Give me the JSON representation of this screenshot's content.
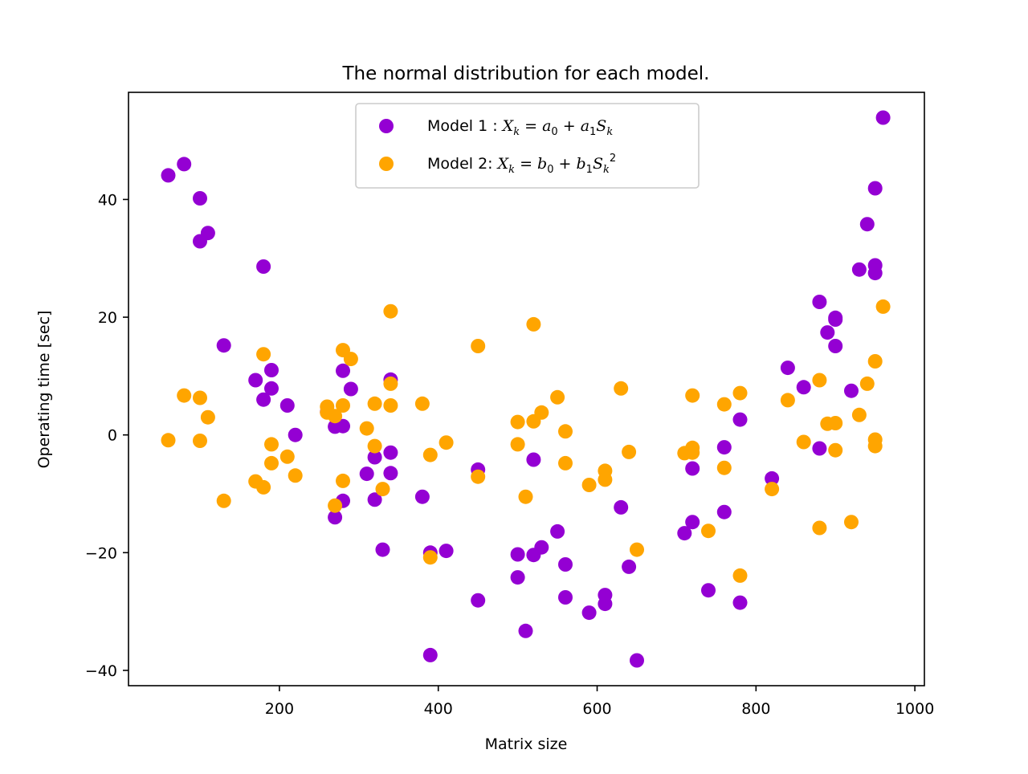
{
  "chart_data": {
    "type": "scatter",
    "title": "The normal distribution for each model.",
    "xlabel": "Matrix size",
    "ylabel": "Operating time [sec]",
    "xlim": [
      10,
      1012
    ],
    "ylim": [
      -42.6,
      58.2
    ],
    "xticks": [
      200,
      400,
      600,
      800,
      1000
    ],
    "yticks": [
      -40,
      -20,
      0,
      20,
      40
    ],
    "xtick_labels": [
      "200",
      "400",
      "600",
      "800",
      "1000"
    ],
    "ytick_labels": [
      "−40",
      "−20",
      "0",
      "20",
      "40"
    ],
    "grid": false,
    "legend_position": "upper center",
    "series": [
      {
        "name": "Model 1 : X_k = a_0 + a_1 S_k",
        "legend_prefix": "Model 1 : ",
        "color": "#9400d3",
        "points": [
          [
            60,
            44.1
          ],
          [
            80,
            46.0
          ],
          [
            100,
            40.2
          ],
          [
            100,
            32.9
          ],
          [
            110,
            34.3
          ],
          [
            130,
            15.2
          ],
          [
            170,
            9.3
          ],
          [
            180,
            28.6
          ],
          [
            180,
            6.0
          ],
          [
            190,
            11.0
          ],
          [
            190,
            7.9
          ],
          [
            210,
            5.0
          ],
          [
            220,
            0.0
          ],
          [
            260,
            3.9
          ],
          [
            270,
            1.4
          ],
          [
            270,
            -14.0
          ],
          [
            280,
            1.5
          ],
          [
            280,
            10.9
          ],
          [
            280,
            -11.2
          ],
          [
            290,
            7.8
          ],
          [
            310,
            -6.6
          ],
          [
            320,
            -3.8
          ],
          [
            320,
            -11.0
          ],
          [
            330,
            -19.5
          ],
          [
            340,
            9.4
          ],
          [
            340,
            -3.0
          ],
          [
            340,
            -6.5
          ],
          [
            380,
            -10.5
          ],
          [
            390,
            -20.0
          ],
          [
            390,
            -37.4
          ],
          [
            410,
            -19.7
          ],
          [
            450,
            -5.9
          ],
          [
            450,
            -28.1
          ],
          [
            500,
            -20.3
          ],
          [
            500,
            -24.2
          ],
          [
            510,
            -33.3
          ],
          [
            520,
            -4.2
          ],
          [
            520,
            -20.4
          ],
          [
            530,
            -19.1
          ],
          [
            550,
            -16.4
          ],
          [
            560,
            -22.0
          ],
          [
            560,
            -27.6
          ],
          [
            590,
            -30.2
          ],
          [
            610,
            -27.2
          ],
          [
            610,
            -28.7
          ],
          [
            630,
            -12.3
          ],
          [
            640,
            -22.4
          ],
          [
            650,
            -38.3
          ],
          [
            710,
            -16.7
          ],
          [
            720,
            -5.7
          ],
          [
            720,
            -14.8
          ],
          [
            740,
            -26.4
          ],
          [
            760,
            -2.1
          ],
          [
            760,
            -13.1
          ],
          [
            780,
            2.6
          ],
          [
            780,
            -28.5
          ],
          [
            820,
            -7.4
          ],
          [
            840,
            11.4
          ],
          [
            860,
            8.1
          ],
          [
            880,
            22.6
          ],
          [
            880,
            -2.3
          ],
          [
            890,
            17.4
          ],
          [
            900,
            19.9
          ],
          [
            900,
            15.1
          ],
          [
            900,
            19.6
          ],
          [
            920,
            7.5
          ],
          [
            930,
            28.1
          ],
          [
            940,
            35.8
          ],
          [
            950,
            41.9
          ],
          [
            950,
            28.8
          ],
          [
            950,
            27.5
          ],
          [
            960,
            53.9
          ]
        ]
      },
      {
        "name": "Model 2: X_k = b_0 + b_1 S_k^2",
        "legend_prefix": "Model 2: ",
        "color": "#ffa500",
        "points": [
          [
            60,
            -0.9
          ],
          [
            80,
            6.7
          ],
          [
            100,
            6.3
          ],
          [
            100,
            -1.0
          ],
          [
            110,
            3.0
          ],
          [
            130,
            -11.2
          ],
          [
            170,
            -7.9
          ],
          [
            180,
            13.7
          ],
          [
            180,
            -8.9
          ],
          [
            190,
            -1.6
          ],
          [
            190,
            -4.8
          ],
          [
            210,
            -3.7
          ],
          [
            220,
            -6.9
          ],
          [
            260,
            4.8
          ],
          [
            260,
            3.8
          ],
          [
            270,
            3.2
          ],
          [
            270,
            -12.0
          ],
          [
            280,
            14.4
          ],
          [
            280,
            5.0
          ],
          [
            280,
            -7.8
          ],
          [
            290,
            12.9
          ],
          [
            310,
            1.1
          ],
          [
            320,
            5.3
          ],
          [
            320,
            -1.9
          ],
          [
            330,
            -9.2
          ],
          [
            340,
            21.0
          ],
          [
            340,
            8.7
          ],
          [
            340,
            5.0
          ],
          [
            380,
            5.3
          ],
          [
            390,
            -3.4
          ],
          [
            390,
            -20.8
          ],
          [
            410,
            -1.3
          ],
          [
            450,
            15.1
          ],
          [
            450,
            -7.1
          ],
          [
            500,
            2.2
          ],
          [
            500,
            -1.6
          ],
          [
            510,
            -10.5
          ],
          [
            520,
            18.8
          ],
          [
            520,
            2.3
          ],
          [
            530,
            3.8
          ],
          [
            550,
            6.4
          ],
          [
            560,
            0.6
          ],
          [
            560,
            -4.8
          ],
          [
            590,
            -8.5
          ],
          [
            610,
            -6.1
          ],
          [
            610,
            -7.6
          ],
          [
            630,
            7.9
          ],
          [
            640,
            -2.9
          ],
          [
            650,
            -19.5
          ],
          [
            710,
            -3.1
          ],
          [
            720,
            6.7
          ],
          [
            720,
            -2.2
          ],
          [
            720,
            -3.0
          ],
          [
            740,
            -16.3
          ],
          [
            760,
            5.2
          ],
          [
            760,
            -5.6
          ],
          [
            780,
            7.1
          ],
          [
            780,
            -23.9
          ],
          [
            820,
            -9.2
          ],
          [
            840,
            5.9
          ],
          [
            860,
            -1.2
          ],
          [
            880,
            9.3
          ],
          [
            880,
            -15.8
          ],
          [
            890,
            1.9
          ],
          [
            900,
            2.0
          ],
          [
            900,
            -2.6
          ],
          [
            920,
            -14.8
          ],
          [
            930,
            3.4
          ],
          [
            940,
            8.7
          ],
          [
            950,
            12.5
          ],
          [
            950,
            -0.8
          ],
          [
            950,
            -1.9
          ],
          [
            960,
            21.8
          ]
        ]
      }
    ]
  }
}
